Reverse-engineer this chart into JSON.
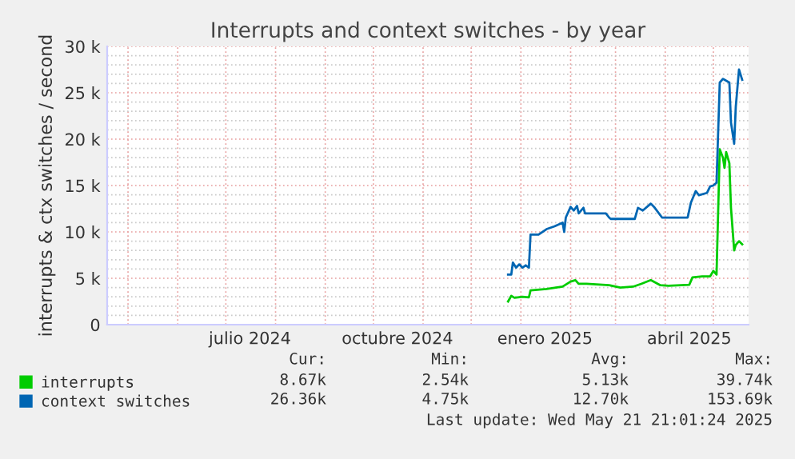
{
  "chart_data": {
    "type": "line",
    "title": "Interrupts and context switches - by year",
    "ylabel": "interrupts & ctx switches / second",
    "xlim": [
      "2024-04-18",
      "2025-05-23"
    ],
    "xticks": [
      {
        "value": "2024-05-01",
        "label": null
      },
      {
        "value": "2024-06-01",
        "label": null
      },
      {
        "value": "2024-07-01",
        "label": null
      },
      {
        "value": "2024-07-16",
        "label": "julio 2024"
      },
      {
        "value": "2024-08-01",
        "label": null
      },
      {
        "value": "2024-09-01",
        "label": null
      },
      {
        "value": "2024-10-01",
        "label": null
      },
      {
        "value": "2024-10-16",
        "label": "octubre 2024"
      },
      {
        "value": "2024-11-01",
        "label": null
      },
      {
        "value": "2024-12-01",
        "label": null
      },
      {
        "value": "2025-01-01",
        "label": null
      },
      {
        "value": "2025-01-16",
        "label": "enero 2025"
      },
      {
        "value": "2025-02-01",
        "label": null
      },
      {
        "value": "2025-03-01",
        "label": null
      },
      {
        "value": "2025-04-01",
        "label": null
      },
      {
        "value": "2025-04-16",
        "label": "abril 2025"
      },
      {
        "value": "2025-05-01",
        "label": null
      }
    ],
    "ylim": [
      0,
      30000
    ],
    "yticks": [
      0,
      {
        "value": 1000,
        "label": null
      },
      {
        "value": 2000,
        "label": null
      },
      {
        "value": 3000,
        "label": null
      },
      {
        "value": 4000,
        "label": null
      },
      {
        "value": 5000,
        "label": "5 k"
      },
      {
        "value": 6000,
        "label": null
      },
      {
        "value": 7000,
        "label": null
      },
      {
        "value": 8000,
        "label": null
      },
      {
        "value": 9000,
        "label": null
      },
      {
        "value": 10000,
        "label": "10 k"
      },
      {
        "value": 11000,
        "label": null
      },
      {
        "value": 12000,
        "label": null
      },
      {
        "value": 13000,
        "label": null
      },
      {
        "value": 14000,
        "label": null
      },
      {
        "value": 15000,
        "label": "15 k"
      },
      {
        "value": 16000,
        "label": null
      },
      {
        "value": 17000,
        "label": null
      },
      {
        "value": 18000,
        "label": null
      },
      {
        "value": 19000,
        "label": null
      },
      {
        "value": 20000,
        "label": "20 k"
      },
      {
        "value": 21000,
        "label": null
      },
      {
        "value": 22000,
        "label": null
      },
      {
        "value": 23000,
        "label": null
      },
      {
        "value": 24000,
        "label": null
      },
      {
        "value": 25000,
        "label": "25 k"
      },
      {
        "value": 26000,
        "label": null
      },
      {
        "value": 27000,
        "label": null
      },
      {
        "value": 28000,
        "label": null
      },
      {
        "value": 29000,
        "label": null
      },
      {
        "value": 30000,
        "label": "30 k"
      }
    ],
    "grid": true,
    "legend": "bottom",
    "series": [
      {
        "name": "interrupts",
        "color": "#00cc00",
        "x": [
          "2024-12-24",
          "2024-12-26",
          "2024-12-28",
          "2025-01-02",
          "2025-01-06",
          "2025-01-07",
          "2025-01-17",
          "2025-01-27",
          "2025-02-01",
          "2025-02-04",
          "2025-02-06",
          "2025-02-11",
          "2025-02-25",
          "2025-03-04",
          "2025-03-12",
          "2025-03-17",
          "2025-03-23",
          "2025-03-29",
          "2025-04-03",
          "2025-04-16",
          "2025-04-18",
          "2025-04-24",
          "2025-04-29",
          "2025-05-01",
          "2025-05-03",
          "2025-05-05",
          "2025-05-07",
          "2025-05-08",
          "2025-05-09",
          "2025-05-11",
          "2025-05-12",
          "2025-05-14",
          "2025-05-15",
          "2025-05-17",
          "2025-05-19"
        ],
        "values": [
          2500,
          3100,
          2900,
          3000,
          2950,
          3700,
          3850,
          4100,
          4650,
          4800,
          4400,
          4400,
          4250,
          4000,
          4100,
          4400,
          4800,
          4250,
          4200,
          4300,
          5100,
          5200,
          5200,
          5800,
          5400,
          18900,
          18000,
          16900,
          18600,
          17400,
          12600,
          8000,
          8600,
          9000,
          8670
        ]
      },
      {
        "name": "context switches",
        "color": "#0066b3",
        "x": [
          "2024-12-24",
          "2024-12-26",
          "2024-12-27",
          "2024-12-29",
          "2024-12-31",
          "2025-01-02",
          "2025-01-04",
          "2025-01-06",
          "2025-01-07",
          "2025-01-12",
          "2025-01-17",
          "2025-01-22",
          "2025-01-27",
          "2025-01-28",
          "2025-01-29",
          "2025-02-01",
          "2025-02-03",
          "2025-02-05",
          "2025-02-06",
          "2025-02-09",
          "2025-02-10",
          "2025-02-23",
          "2025-02-25",
          "2025-02-26",
          "2025-03-13",
          "2025-03-15",
          "2025-03-18",
          "2025-03-23",
          "2025-03-25",
          "2025-03-30",
          "2025-04-02",
          "2025-04-15",
          "2025-04-17",
          "2025-04-20",
          "2025-04-22",
          "2025-04-27",
          "2025-04-29",
          "2025-05-01",
          "2025-05-03",
          "2025-05-05",
          "2025-05-07",
          "2025-05-08",
          "2025-05-11",
          "2025-05-12",
          "2025-05-14",
          "2025-05-15",
          "2025-05-17",
          "2025-05-19"
        ],
        "values": [
          5400,
          5400,
          6700,
          6150,
          6500,
          6150,
          6400,
          6150,
          9700,
          9700,
          10300,
          10600,
          11000,
          10000,
          11550,
          12700,
          12300,
          12800,
          12000,
          12600,
          12000,
          12000,
          11550,
          11400,
          11400,
          12600,
          12300,
          13050,
          12700,
          11550,
          11550,
          11550,
          13150,
          14400,
          13950,
          14200,
          14900,
          15000,
          15300,
          26100,
          26500,
          26400,
          26100,
          21800,
          19500,
          23500,
          27500,
          26400
        ]
      }
    ],
    "annotations": [
      "Cur:",
      "Min:",
      "Avg:",
      "Max:",
      "8.67k",
      "2.54k",
      "5.13k",
      "39.74k",
      "26.36k",
      "4.75k",
      "12.70k",
      "153.69k",
      "Last update: Wed May 21 21:01:24 2025"
    ]
  }
}
